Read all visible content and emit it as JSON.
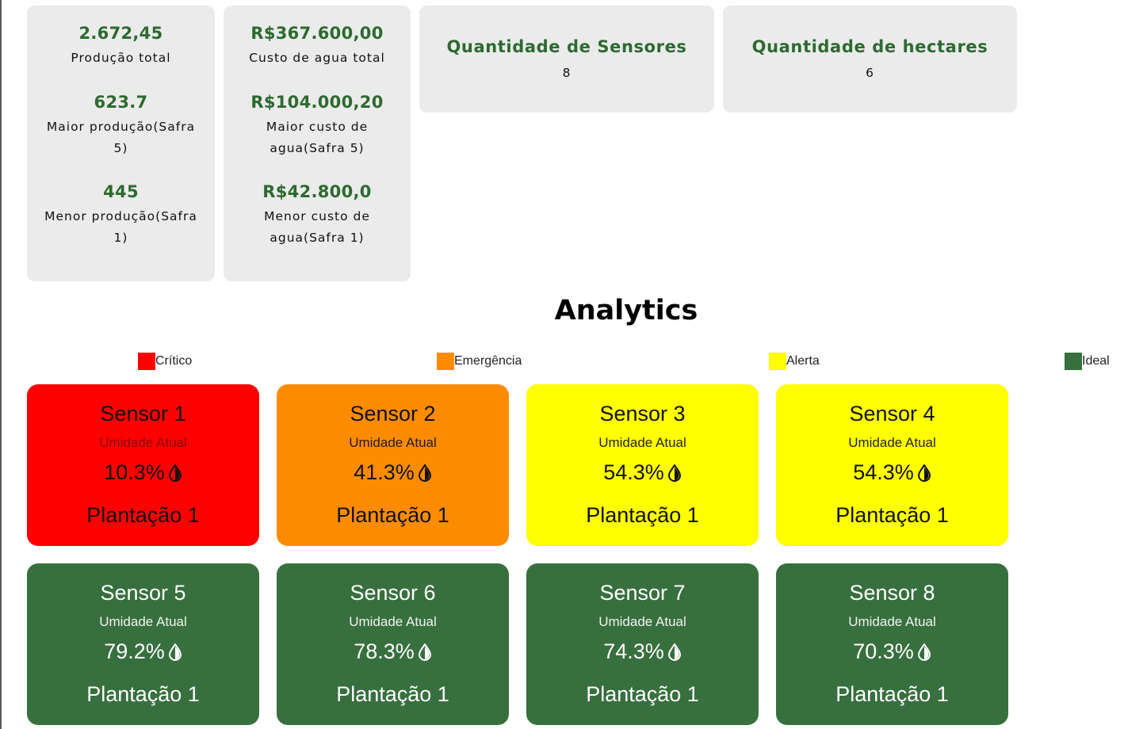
{
  "stats": {
    "production": [
      {
        "value": "2.672,45",
        "label": "Produção total"
      },
      {
        "value": "623.7",
        "label": "Maior produção(Safra 5)"
      },
      {
        "value": "445",
        "label": "Menor produção(Safra 1)"
      }
    ],
    "water": [
      {
        "value": "R$367.600,00",
        "label": "Custo de agua total"
      },
      {
        "value": "R$104.000,20",
        "label": "Maior custo de agua(Safra 5)"
      },
      {
        "value": "R$42.800,0",
        "label": "Menor custo de agua(Safra 1)"
      }
    ],
    "sensors": {
      "title": "Quantidade de Sensores",
      "value": "8"
    },
    "hectares": {
      "title": "Quantidade de hectares",
      "value": "6"
    }
  },
  "analytics": {
    "title": "Analytics",
    "legend": [
      {
        "label": "Crítico",
        "color": "#ff0000"
      },
      {
        "label": "Emergência",
        "color": "#ff8c00"
      },
      {
        "label": "Alerta",
        "color": "#ffff00"
      },
      {
        "label": "Ideal",
        "color": "#386f3e"
      }
    ]
  },
  "sensor_icon": "moisture-drop-icon",
  "sensors": [
    {
      "name": "Sensor 1",
      "subtitle": "Umidade Atual",
      "humidity": "10.3%",
      "plantation": "Plantação 1",
      "status": "Crítico",
      "color": "#ff0000"
    },
    {
      "name": "Sensor 2",
      "subtitle": "Umidade Atual",
      "humidity": "41.3%",
      "plantation": "Plantação 1",
      "status": "Emergência",
      "color": "#ff8c00"
    },
    {
      "name": "Sensor 3",
      "subtitle": "Umidade Atual",
      "humidity": "54.3%",
      "plantation": "Plantação 1",
      "status": "Alerta",
      "color": "#ffff00"
    },
    {
      "name": "Sensor 4",
      "subtitle": "Umidade Atual",
      "humidity": "54.3%",
      "plantation": "Plantação 1",
      "status": "Alerta",
      "color": "#ffff00"
    },
    {
      "name": "Sensor 5",
      "subtitle": "Umidade Atual",
      "humidity": "79.2%",
      "plantation": "Plantação 1",
      "status": "Ideal",
      "color": "#386f3e"
    },
    {
      "name": "Sensor 6",
      "subtitle": "Umidade Atual",
      "humidity": "78.3%",
      "plantation": "Plantação 1",
      "status": "Ideal",
      "color": "#386f3e"
    },
    {
      "name": "Sensor 7",
      "subtitle": "Umidade Atual",
      "humidity": "74.3%",
      "plantation": "Plantação 1",
      "status": "Ideal",
      "color": "#386f3e"
    },
    {
      "name": "Sensor 8",
      "subtitle": "Umidade Atual",
      "humidity": "70.3%",
      "plantation": "Plantação 1",
      "status": "Ideal",
      "color": "#386f3e"
    }
  ]
}
